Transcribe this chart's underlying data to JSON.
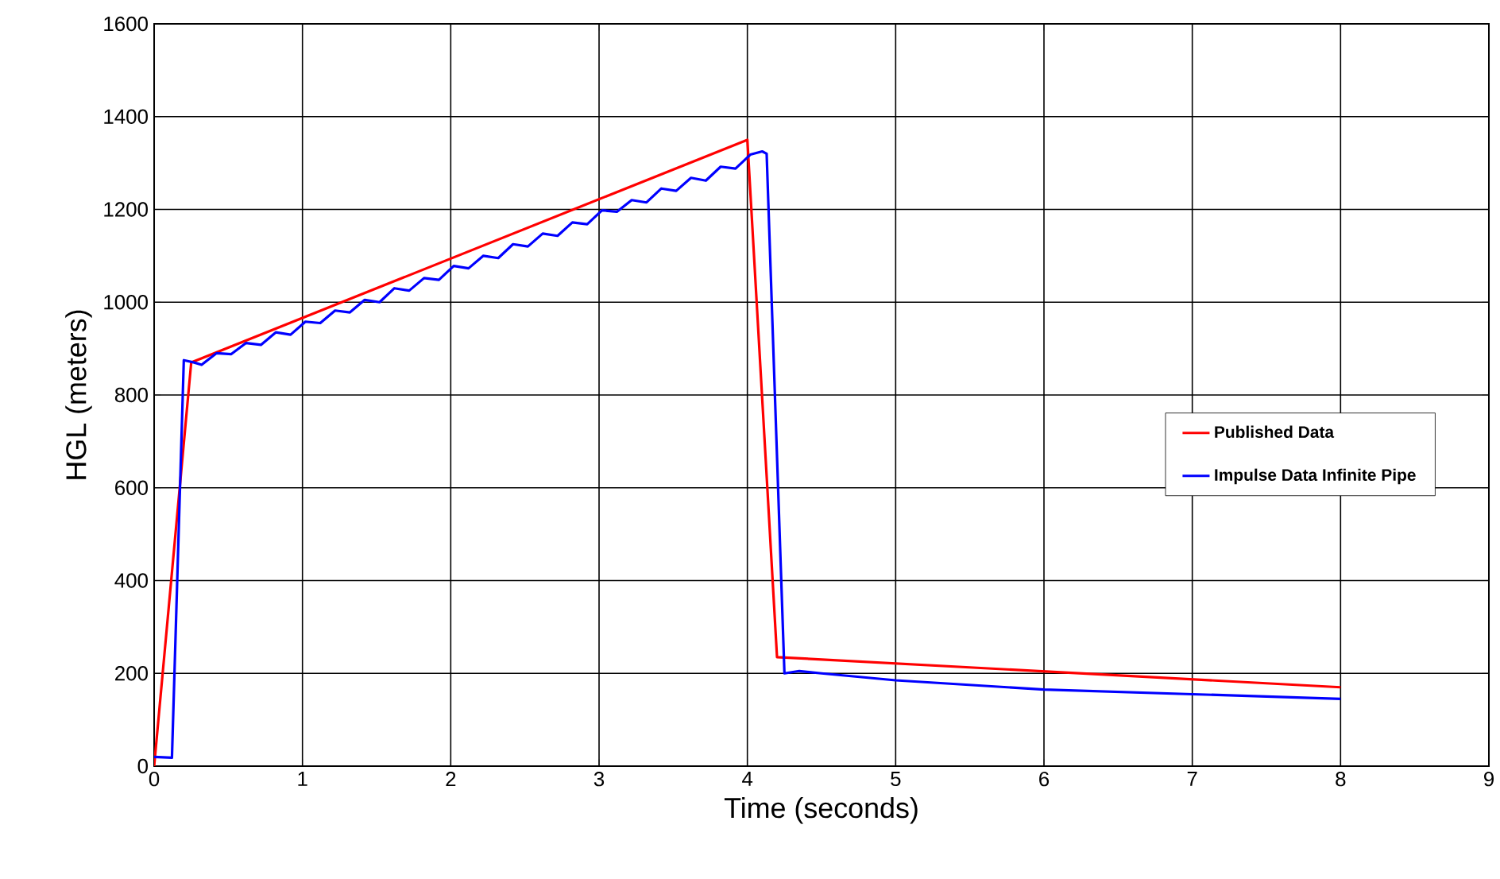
{
  "chart_data": {
    "type": "line",
    "xlabel": "Time (seconds)",
    "ylabel": "HGL (meters)",
    "xlim": [
      0,
      9
    ],
    "xticks": [
      0,
      1,
      2,
      3,
      4,
      5,
      6,
      7,
      8,
      9
    ],
    "ylim": [
      0,
      1600
    ],
    "yticks": [
      0,
      200,
      400,
      600,
      800,
      1000,
      1200,
      1400,
      1600
    ],
    "grid": true,
    "legend": "right",
    "marker": "none",
    "line_style": "solid",
    "series": [
      {
        "name": "Published Data",
        "color": "#ff0000",
        "x": [
          0,
          0.25,
          4.0,
          4.2,
          8.0
        ],
        "values": [
          0,
          870,
          1350,
          235,
          170
        ]
      },
      {
        "name": "Impulse Data Infinite Pipe",
        "color": "#0000ff",
        "x": [
          0,
          0.12,
          0.2,
          0.27,
          0.32,
          0.42,
          0.52,
          0.62,
          0.72,
          0.82,
          0.92,
          1.02,
          1.12,
          1.22,
          1.32,
          1.42,
          1.52,
          1.62,
          1.72,
          1.82,
          1.92,
          2.02,
          2.12,
          2.22,
          2.32,
          2.42,
          2.52,
          2.62,
          2.72,
          2.82,
          2.92,
          3.02,
          3.12,
          3.22,
          3.32,
          3.42,
          3.52,
          3.62,
          3.72,
          3.82,
          3.92,
          4.02,
          4.1,
          4.13,
          4.25,
          4.35,
          4.5,
          5,
          6,
          7,
          8
        ],
        "values": [
          20,
          18,
          875,
          870,
          865,
          890,
          888,
          912,
          908,
          935,
          930,
          958,
          955,
          982,
          978,
          1005,
          1000,
          1030,
          1025,
          1052,
          1048,
          1078,
          1073,
          1100,
          1095,
          1125,
          1120,
          1148,
          1143,
          1172,
          1168,
          1198,
          1195,
          1220,
          1215,
          1245,
          1240,
          1268,
          1262,
          1292,
          1288,
          1318,
          1325,
          1320,
          200,
          205,
          200,
          185,
          165,
          155,
          145
        ]
      }
    ]
  }
}
